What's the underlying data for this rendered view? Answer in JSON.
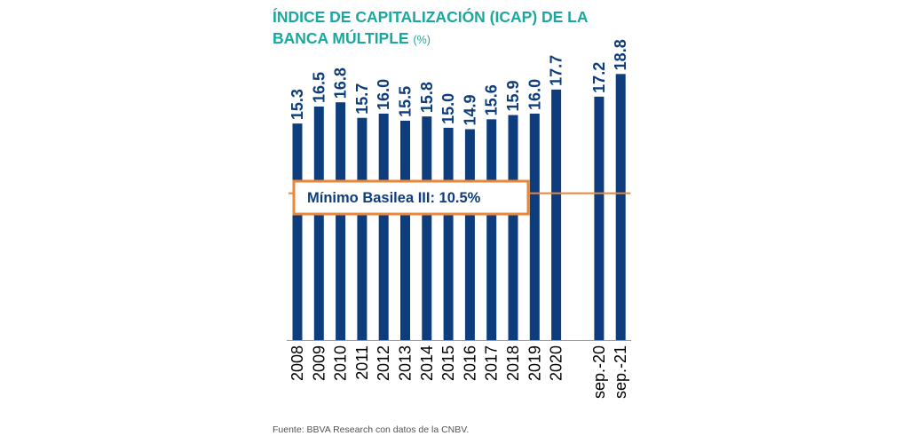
{
  "title": {
    "line1": "ÍNDICE DE CAPITALIZACIÓN (ICAP) DE LA",
    "line2": "BANCA MÚLTIPLE",
    "unit": "(%)"
  },
  "source": "Fuente: BBVA Research con datos de la CNBV.",
  "colors": {
    "title": "#1aa7a0",
    "bar": "#0d3d7c",
    "reference": "#e8873a",
    "text": "#0d3d7c"
  },
  "chart_data": {
    "type": "bar",
    "title": "ÍNDICE DE CAPITALIZACIÓN (ICAP) DE LA BANCA MÚLTIPLE (%)",
    "categories": [
      "2008",
      "2009",
      "2010",
      "2011",
      "2012",
      "2013",
      "2014",
      "2015",
      "2016",
      "2017",
      "2018",
      "2019",
      "2020",
      "sep.-20",
      "sep.-21"
    ],
    "values": [
      15.3,
      16.5,
      16.8,
      15.7,
      16.0,
      15.5,
      15.8,
      15.0,
      14.9,
      15.6,
      15.9,
      16.0,
      17.7,
      17.2,
      18.8
    ],
    "value_labels": [
      "15.3",
      "16.5",
      "16.8",
      "15.7",
      "16.0",
      "15.5",
      "15.8",
      "15.0",
      "14.9",
      "15.6",
      "15.9",
      "16.0",
      "17.7",
      "17.2",
      "18.8"
    ],
    "ylim": [
      0,
      23.4
    ],
    "gap_before_index": 13,
    "reference_line": {
      "value": 10.5,
      "label": "Mínimo Basilea III: 10.5%"
    },
    "grid": false,
    "legend": "none"
  }
}
